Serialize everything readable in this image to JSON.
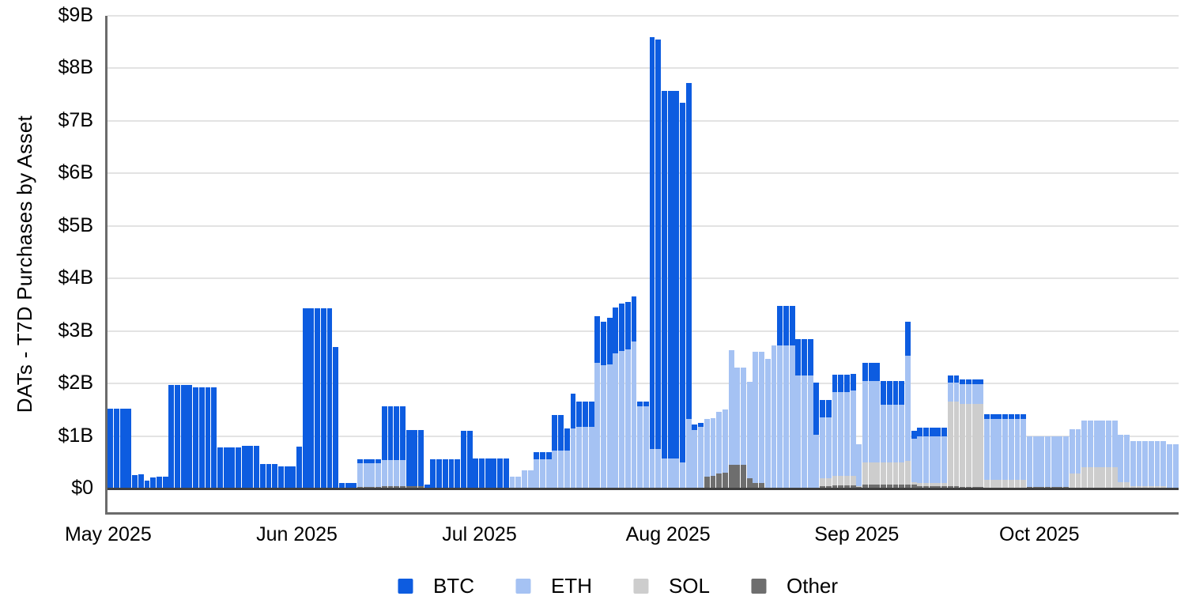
{
  "chart_data": {
    "type": "bar",
    "stacked": true,
    "ylabel": "DATs - T7D Purchases by Asset",
    "xlabel": "",
    "y_unit": "USD billions",
    "ylim": [
      0,
      9
    ],
    "grid": "horizontal",
    "legend_position": "bottom",
    "y_ticks": [
      "$0",
      "$1B",
      "$2B",
      "$3B",
      "$4B",
      "$5B",
      "$6B",
      "$7B",
      "$8B",
      "$9B"
    ],
    "x_ticks": [
      {
        "label": "May 2025",
        "day_index": 0
      },
      {
        "label": "Jun 2025",
        "day_index": 31
      },
      {
        "label": "Jul 2025",
        "day_index": 61
      },
      {
        "label": "Aug 2025",
        "day_index": 92
      },
      {
        "label": "Sep 2025",
        "day_index": 123
      },
      {
        "label": "Oct 2025",
        "day_index": 153
      }
    ],
    "series_names": [
      "BTC",
      "ETH",
      "SOL",
      "Other"
    ],
    "series_colors": {
      "BTC": "#0d5ce0",
      "ETH": "#a5c2f3",
      "SOL": "#cdcdcd",
      "Other": "#6e6e6e"
    },
    "stack_order_bottom_to_top": [
      "Other",
      "SOL",
      "ETH",
      "BTC"
    ],
    "columns": [
      "date",
      "BTC",
      "ETH",
      "SOL",
      "Other"
    ],
    "rows": [
      [
        "2025-05-01",
        1.52,
        0,
        0,
        0
      ],
      [
        "2025-05-02",
        1.52,
        0,
        0,
        0
      ],
      [
        "2025-05-03",
        1.52,
        0,
        0,
        0
      ],
      [
        "2025-05-04",
        1.52,
        0,
        0,
        0
      ],
      [
        "2025-05-05",
        0.26,
        0,
        0,
        0
      ],
      [
        "2025-05-06",
        0.27,
        0,
        0,
        0
      ],
      [
        "2025-05-07",
        0.15,
        0,
        0,
        0
      ],
      [
        "2025-05-08",
        0.21,
        0,
        0,
        0
      ],
      [
        "2025-05-09",
        0.23,
        0,
        0,
        0
      ],
      [
        "2025-05-10",
        0.23,
        0,
        0,
        0
      ],
      [
        "2025-05-11",
        1.97,
        0,
        0,
        0
      ],
      [
        "2025-05-12",
        1.97,
        0,
        0,
        0
      ],
      [
        "2025-05-13",
        1.97,
        0,
        0,
        0
      ],
      [
        "2025-05-14",
        1.97,
        0,
        0,
        0
      ],
      [
        "2025-05-15",
        1.93,
        0,
        0,
        0
      ],
      [
        "2025-05-16",
        1.93,
        0,
        0,
        0
      ],
      [
        "2025-05-17",
        1.93,
        0,
        0,
        0
      ],
      [
        "2025-05-18",
        1.93,
        0,
        0,
        0
      ],
      [
        "2025-05-19",
        0.78,
        0,
        0,
        0
      ],
      [
        "2025-05-20",
        0.78,
        0,
        0,
        0
      ],
      [
        "2025-05-21",
        0.78,
        0,
        0,
        0
      ],
      [
        "2025-05-22",
        0.78,
        0,
        0,
        0
      ],
      [
        "2025-05-23",
        0.82,
        0,
        0,
        0
      ],
      [
        "2025-05-24",
        0.82,
        0,
        0,
        0
      ],
      [
        "2025-05-25",
        0.82,
        0,
        0,
        0
      ],
      [
        "2025-05-26",
        0.47,
        0,
        0,
        0
      ],
      [
        "2025-05-27",
        0.47,
        0,
        0,
        0
      ],
      [
        "2025-05-28",
        0.47,
        0,
        0,
        0
      ],
      [
        "2025-05-29",
        0.42,
        0,
        0,
        0
      ],
      [
        "2025-05-30",
        0.42,
        0,
        0,
        0
      ],
      [
        "2025-05-31",
        0.42,
        0,
        0,
        0
      ],
      [
        "2025-06-01",
        0.8,
        0,
        0,
        0
      ],
      [
        "2025-06-02",
        3.43,
        0,
        0,
        0
      ],
      [
        "2025-06-03",
        3.43,
        0,
        0,
        0
      ],
      [
        "2025-06-04",
        3.43,
        0,
        0,
        0
      ],
      [
        "2025-06-05",
        3.43,
        0,
        0,
        0
      ],
      [
        "2025-06-06",
        3.43,
        0,
        0,
        0
      ],
      [
        "2025-06-07",
        2.7,
        0,
        0,
        0
      ],
      [
        "2025-06-08",
        0.1,
        0,
        0,
        0
      ],
      [
        "2025-06-09",
        0.1,
        0,
        0,
        0
      ],
      [
        "2025-06-10",
        0.1,
        0,
        0,
        0
      ],
      [
        "2025-06-11",
        0.08,
        0.45,
        0,
        0.03
      ],
      [
        "2025-06-12",
        0.08,
        0.45,
        0,
        0.03
      ],
      [
        "2025-06-13",
        0.08,
        0.45,
        0,
        0.03
      ],
      [
        "2025-06-14",
        0.08,
        0.45,
        0,
        0.03
      ],
      [
        "2025-06-15",
        1.02,
        0.5,
        0,
        0.04
      ],
      [
        "2025-06-16",
        1.02,
        0.5,
        0,
        0.04
      ],
      [
        "2025-06-17",
        1.02,
        0.5,
        0,
        0.04
      ],
      [
        "2025-06-18",
        1.02,
        0.5,
        0,
        0.04
      ],
      [
        "2025-06-19",
        1.08,
        0,
        0,
        0.04
      ],
      [
        "2025-06-20",
        1.08,
        0,
        0,
        0.04
      ],
      [
        "2025-06-21",
        1.08,
        0,
        0,
        0.04
      ],
      [
        "2025-06-22",
        0.07,
        0,
        0,
        0
      ],
      [
        "2025-06-23",
        0.55,
        0,
        0,
        0
      ],
      [
        "2025-06-24",
        0.55,
        0,
        0,
        0
      ],
      [
        "2025-06-25",
        0.55,
        0,
        0,
        0
      ],
      [
        "2025-06-26",
        0.55,
        0,
        0,
        0
      ],
      [
        "2025-06-27",
        0.55,
        0,
        0,
        0
      ],
      [
        "2025-06-28",
        1.1,
        0,
        0,
        0
      ],
      [
        "2025-06-29",
        1.1,
        0,
        0,
        0
      ],
      [
        "2025-06-30",
        0.57,
        0,
        0,
        0
      ],
      [
        "2025-07-01",
        0.57,
        0,
        0,
        0
      ],
      [
        "2025-07-02",
        0.57,
        0,
        0,
        0
      ],
      [
        "2025-07-03",
        0.57,
        0,
        0,
        0
      ],
      [
        "2025-07-04",
        0.57,
        0,
        0,
        0
      ],
      [
        "2025-07-05",
        0.57,
        0,
        0,
        0
      ],
      [
        "2025-07-06",
        0,
        0.23,
        0,
        0
      ],
      [
        "2025-07-07",
        0,
        0.23,
        0,
        0
      ],
      [
        "2025-07-08",
        0,
        0.35,
        0,
        0
      ],
      [
        "2025-07-09",
        0,
        0.35,
        0,
        0
      ],
      [
        "2025-07-10",
        0.15,
        0.55,
        0,
        0
      ],
      [
        "2025-07-11",
        0.15,
        0.55,
        0,
        0
      ],
      [
        "2025-07-12",
        0.15,
        0.55,
        0,
        0
      ],
      [
        "2025-07-13",
        0.68,
        0.72,
        0,
        0
      ],
      [
        "2025-07-14",
        0.68,
        0.72,
        0,
        0
      ],
      [
        "2025-07-15",
        0.43,
        0.72,
        0,
        0
      ],
      [
        "2025-07-16",
        0.65,
        1.15,
        0,
        0
      ],
      [
        "2025-07-17",
        0.48,
        1.17,
        0,
        0
      ],
      [
        "2025-07-18",
        0.48,
        1.17,
        0,
        0
      ],
      [
        "2025-07-19",
        0.48,
        1.17,
        0,
        0
      ],
      [
        "2025-07-20",
        0.88,
        2.38,
        0,
        0.02
      ],
      [
        "2025-07-21",
        0.83,
        2.33,
        0,
        0.02
      ],
      [
        "2025-07-22",
        0.88,
        2.35,
        0,
        0.02
      ],
      [
        "2025-07-23",
        0.88,
        2.55,
        0,
        0.02
      ],
      [
        "2025-07-24",
        0.9,
        2.6,
        0,
        0.02
      ],
      [
        "2025-07-25",
        0.9,
        2.63,
        0,
        0.02
      ],
      [
        "2025-07-26",
        0.86,
        2.78,
        0,
        0.02
      ],
      [
        "2025-07-27",
        0.08,
        1.57,
        0,
        0
      ],
      [
        "2025-07-28",
        0.08,
        1.57,
        0,
        0
      ],
      [
        "2025-07-29",
        7.85,
        0.75,
        0,
        0
      ],
      [
        "2025-07-30",
        7.8,
        0.75,
        0,
        0
      ],
      [
        "2025-07-31",
        7.0,
        0.57,
        0,
        0
      ],
      [
        "2025-08-01",
        7.0,
        0.57,
        0,
        0
      ],
      [
        "2025-08-02",
        7.0,
        0.57,
        0,
        0
      ],
      [
        "2025-08-03",
        6.85,
        0.5,
        0,
        0
      ],
      [
        "2025-08-04",
        6.4,
        1.32,
        0,
        0
      ],
      [
        "2025-08-05",
        0.1,
        1.1,
        0,
        0.02
      ],
      [
        "2025-08-06",
        0.08,
        1.15,
        0,
        0.02
      ],
      [
        "2025-08-07",
        0,
        1.1,
        0,
        0.22
      ],
      [
        "2025-08-08",
        0,
        1.1,
        0,
        0.24
      ],
      [
        "2025-08-09",
        0,
        1.18,
        0,
        0.28
      ],
      [
        "2025-08-10",
        0,
        1.2,
        0,
        0.3
      ],
      [
        "2025-08-11",
        0,
        2.18,
        0,
        0.45
      ],
      [
        "2025-08-12",
        0,
        1.85,
        0,
        0.45
      ],
      [
        "2025-08-13",
        0,
        1.85,
        0,
        0.45
      ],
      [
        "2025-08-14",
        0,
        1.83,
        0,
        0.2
      ],
      [
        "2025-08-15",
        0,
        2.5,
        0,
        0.1
      ],
      [
        "2025-08-16",
        0,
        2.5,
        0,
        0.1
      ],
      [
        "2025-08-17",
        0,
        2.45,
        0,
        0.02
      ],
      [
        "2025-08-18",
        0,
        2.7,
        0,
        0.02
      ],
      [
        "2025-08-19",
        0.75,
        2.7,
        0,
        0.02
      ],
      [
        "2025-08-20",
        0.75,
        2.7,
        0,
        0.02
      ],
      [
        "2025-08-21",
        0.75,
        2.7,
        0,
        0.02
      ],
      [
        "2025-08-22",
        0.7,
        2.13,
        0,
        0.02
      ],
      [
        "2025-08-23",
        0.7,
        2.13,
        0,
        0.02
      ],
      [
        "2025-08-24",
        0.7,
        2.13,
        0,
        0.02
      ],
      [
        "2025-08-25",
        1.0,
        1.0,
        0,
        0.02
      ],
      [
        "2025-08-26",
        0.33,
        1.15,
        0.15,
        0.05
      ],
      [
        "2025-08-27",
        0.33,
        1.15,
        0.15,
        0.05
      ],
      [
        "2025-08-28",
        0.33,
        1.6,
        0.18,
        0.06
      ],
      [
        "2025-08-29",
        0.33,
        1.6,
        0.18,
        0.06
      ],
      [
        "2025-08-30",
        0.33,
        1.6,
        0.18,
        0.06
      ],
      [
        "2025-08-31",
        0.33,
        1.62,
        0.18,
        0.06
      ],
      [
        "2025-09-01",
        0,
        0.8,
        0.02,
        0.03
      ],
      [
        "2025-09-02",
        0.35,
        1.55,
        0.43,
        0.07
      ],
      [
        "2025-09-03",
        0.35,
        1.55,
        0.43,
        0.07
      ],
      [
        "2025-09-04",
        0.35,
        1.55,
        0.43,
        0.07
      ],
      [
        "2025-09-05",
        0.45,
        1.1,
        0.43,
        0.07
      ],
      [
        "2025-09-06",
        0.45,
        1.1,
        0.43,
        0.07
      ],
      [
        "2025-09-07",
        0.45,
        1.1,
        0.43,
        0.07
      ],
      [
        "2025-09-08",
        0.45,
        1.1,
        0.43,
        0.07
      ],
      [
        "2025-09-09",
        0.64,
        2.0,
        0.46,
        0.07
      ],
      [
        "2025-09-10",
        0.15,
        0.83,
        0.05,
        0.07
      ],
      [
        "2025-09-11",
        0.16,
        0.9,
        0.05,
        0.05
      ],
      [
        "2025-09-12",
        0.16,
        0.9,
        0.05,
        0.05
      ],
      [
        "2025-09-13",
        0.16,
        0.9,
        0.05,
        0.05
      ],
      [
        "2025-09-14",
        0.16,
        0.9,
        0.05,
        0.05
      ],
      [
        "2025-09-15",
        0.16,
        0.9,
        0.05,
        0.05
      ],
      [
        "2025-09-16",
        0.14,
        0.36,
        1.6,
        0.05
      ],
      [
        "2025-09-17",
        0.14,
        0.36,
        1.6,
        0.05
      ],
      [
        "2025-09-18",
        0.1,
        0.37,
        1.58,
        0.03
      ],
      [
        "2025-09-19",
        0.1,
        0.37,
        1.58,
        0.03
      ],
      [
        "2025-09-20",
        0.1,
        0.37,
        1.58,
        0.03
      ],
      [
        "2025-09-21",
        0.1,
        0.37,
        1.58,
        0.03
      ],
      [
        "2025-09-22",
        0.1,
        1.15,
        0.15,
        0.02
      ],
      [
        "2025-09-23",
        0.1,
        1.15,
        0.15,
        0.02
      ],
      [
        "2025-09-24",
        0.1,
        1.15,
        0.15,
        0.02
      ],
      [
        "2025-09-25",
        0.1,
        1.15,
        0.15,
        0.02
      ],
      [
        "2025-09-26",
        0.1,
        1.15,
        0.15,
        0.02
      ],
      [
        "2025-09-27",
        0.1,
        1.15,
        0.15,
        0.02
      ],
      [
        "2025-09-28",
        0.1,
        1.15,
        0.15,
        0.02
      ],
      [
        "2025-09-29",
        0,
        0.97,
        0,
        0.03
      ],
      [
        "2025-09-30",
        0,
        0.97,
        0,
        0.03
      ],
      [
        "2025-10-01",
        0,
        0.97,
        0,
        0.03
      ],
      [
        "2025-10-02",
        0,
        0.97,
        0,
        0.03
      ],
      [
        "2025-10-03",
        0,
        0.97,
        0,
        0.03
      ],
      [
        "2025-10-04",
        0,
        0.97,
        0,
        0.03
      ],
      [
        "2025-10-05",
        0,
        0.97,
        0,
        0.03
      ],
      [
        "2025-10-06",
        0,
        0.84,
        0.27,
        0.02
      ],
      [
        "2025-10-07",
        0,
        0.84,
        0.27,
        0.02
      ],
      [
        "2025-10-08",
        0,
        0.9,
        0.38,
        0.02
      ],
      [
        "2025-10-09",
        0,
        0.9,
        0.38,
        0.02
      ],
      [
        "2025-10-10",
        0,
        0.9,
        0.38,
        0.02
      ],
      [
        "2025-10-11",
        0,
        0.9,
        0.38,
        0.02
      ],
      [
        "2025-10-12",
        0,
        0.9,
        0.38,
        0.02
      ],
      [
        "2025-10-13",
        0,
        0.9,
        0.38,
        0.02
      ],
      [
        "2025-10-14",
        0,
        0.9,
        0.1,
        0.02
      ],
      [
        "2025-10-15",
        0,
        0.9,
        0.1,
        0.02
      ],
      [
        "2025-10-16",
        0,
        0.86,
        0.02,
        0.02
      ],
      [
        "2025-10-17",
        0,
        0.86,
        0.02,
        0.02
      ],
      [
        "2025-10-18",
        0,
        0.86,
        0.02,
        0.02
      ],
      [
        "2025-10-19",
        0,
        0.86,
        0.02,
        0.02
      ],
      [
        "2025-10-20",
        0,
        0.86,
        0.02,
        0.02
      ],
      [
        "2025-10-21",
        0,
        0.86,
        0.02,
        0.02
      ],
      [
        "2025-10-22",
        0,
        0.83,
        0,
        0.02
      ],
      [
        "2025-10-23",
        0,
        0.83,
        0,
        0.02
      ]
    ]
  },
  "legend": {
    "items": [
      {
        "label": "BTC",
        "color": "#0d5ce0"
      },
      {
        "label": "ETH",
        "color": "#a5c2f3"
      },
      {
        "label": "SOL",
        "color": "#cdcdcd"
      },
      {
        "label": "Other",
        "color": "#6e6e6e"
      }
    ]
  }
}
